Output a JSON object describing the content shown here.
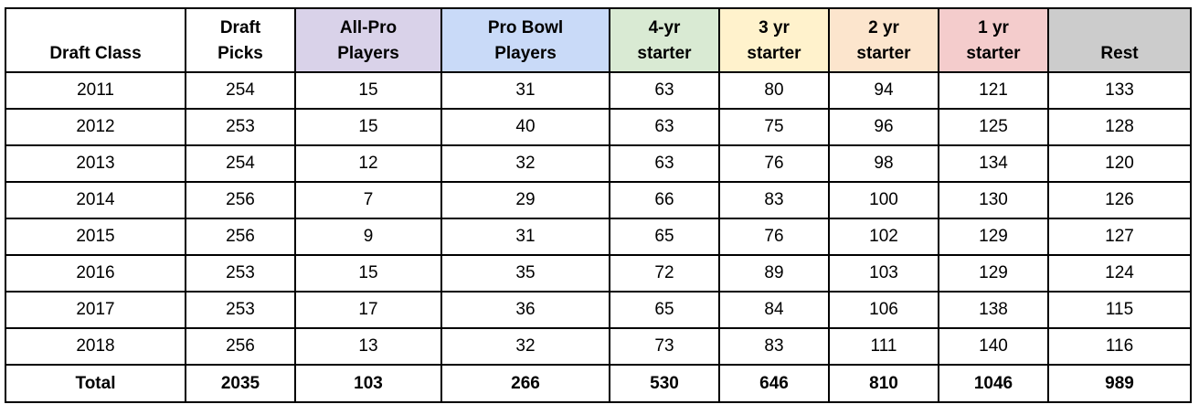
{
  "table": {
    "headers": [
      {
        "key": "draft-class",
        "lines": [
          "Draft Class"
        ],
        "color": "#ffffff"
      },
      {
        "key": "draft-picks",
        "lines": [
          "Draft",
          "Picks"
        ],
        "color": "#ffffff"
      },
      {
        "key": "all-pro",
        "lines": [
          "All-Pro",
          "Players"
        ],
        "color": "#d9d2e9"
      },
      {
        "key": "pro-bowl",
        "lines": [
          "Pro Bowl",
          "Players"
        ],
        "color": "#c9daf8"
      },
      {
        "key": "4yr-starter",
        "lines": [
          "4-yr",
          "starter"
        ],
        "color": "#d9ead3"
      },
      {
        "key": "3yr-starter",
        "lines": [
          "3 yr",
          "starter"
        ],
        "color": "#fff2cc"
      },
      {
        "key": "2yr-starter",
        "lines": [
          "2 yr",
          "starter"
        ],
        "color": "#fce5cd"
      },
      {
        "key": "1yr-starter",
        "lines": [
          "1 yr",
          "starter"
        ],
        "color": "#f4cccc"
      },
      {
        "key": "rest",
        "lines": [
          "Rest"
        ],
        "color": "#cccccc"
      }
    ],
    "rows": [
      [
        "2011",
        "254",
        "15",
        "31",
        "63",
        "80",
        "94",
        "121",
        "133"
      ],
      [
        "2012",
        "253",
        "15",
        "40",
        "63",
        "75",
        "96",
        "125",
        "128"
      ],
      [
        "2013",
        "254",
        "12",
        "32",
        "63",
        "76",
        "98",
        "134",
        "120"
      ],
      [
        "2014",
        "256",
        "7",
        "29",
        "66",
        "83",
        "100",
        "130",
        "126"
      ],
      [
        "2015",
        "256",
        "9",
        "31",
        "65",
        "76",
        "102",
        "129",
        "127"
      ],
      [
        "2016",
        "253",
        "15",
        "35",
        "72",
        "89",
        "103",
        "129",
        "124"
      ],
      [
        "2017",
        "253",
        "17",
        "36",
        "65",
        "84",
        "106",
        "138",
        "115"
      ],
      [
        "2018",
        "256",
        "13",
        "32",
        "73",
        "83",
        "111",
        "140",
        "116"
      ]
    ],
    "total": [
      "Total",
      "2035",
      "103",
      "266",
      "530",
      "646",
      "810",
      "1046",
      "989"
    ]
  }
}
